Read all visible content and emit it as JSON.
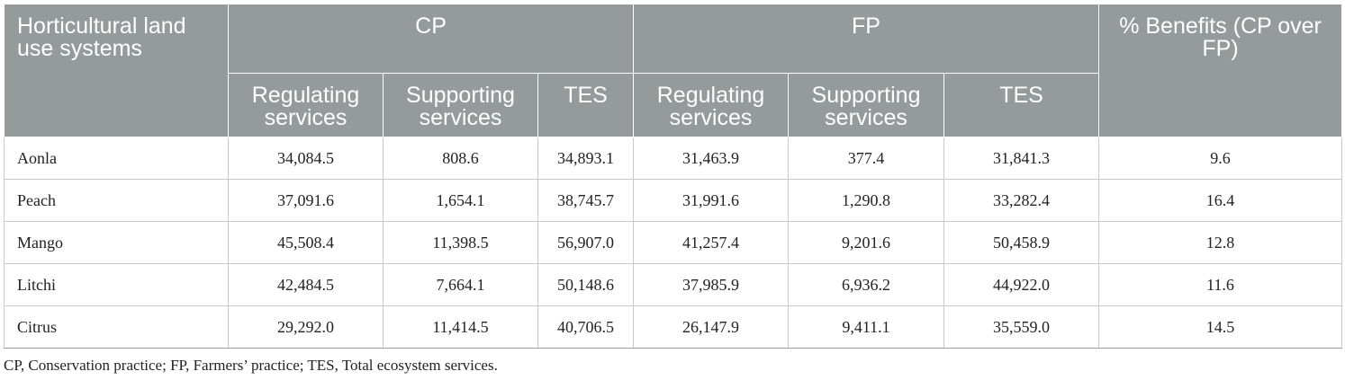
{
  "table": {
    "stub_header": "Horticultural land use systems",
    "group_cp": "CP",
    "group_fp": "FP",
    "benefit_header": "% Benefits (CP over FP)",
    "sub_headers": [
      "Regulating services",
      "Supporting services",
      "TES",
      "Regulating services",
      "Supporting services",
      "TES"
    ],
    "rows": [
      {
        "name": "Aonla",
        "values": [
          "34,084.5",
          "808.6",
          "34,893.1",
          "31,463.9",
          "377.4",
          "31,841.3",
          "9.6"
        ]
      },
      {
        "name": "Peach",
        "values": [
          "37,091.6",
          "1,654.1",
          "38,745.7",
          "31,991.6",
          "1,290.8",
          "33,282.4",
          "16.4"
        ]
      },
      {
        "name": "Mango",
        "values": [
          "45,508.4",
          "11,398.5",
          "56,907.0",
          "41,257.4",
          "9,201.6",
          "50,458.9",
          "12.8"
        ]
      },
      {
        "name": "Litchi",
        "values": [
          "42,484.5",
          "7,664.1",
          "50,148.6",
          "37,985.9",
          "6,936.2",
          "44,922.0",
          "11.6"
        ]
      },
      {
        "name": "Citrus",
        "values": [
          "29,292.0",
          "11,414.5",
          "40,706.5",
          "26,147.9",
          "9,411.1",
          "35,559.0",
          "14.5"
        ]
      }
    ]
  },
  "footnote": "CP, Conservation practice; FP, Farmers’ practice; TES, Total ecosystem services.",
  "colors": {
    "header_bg": "#959a9b",
    "header_text": "#ffffff",
    "grid": "#c7c9ca"
  }
}
